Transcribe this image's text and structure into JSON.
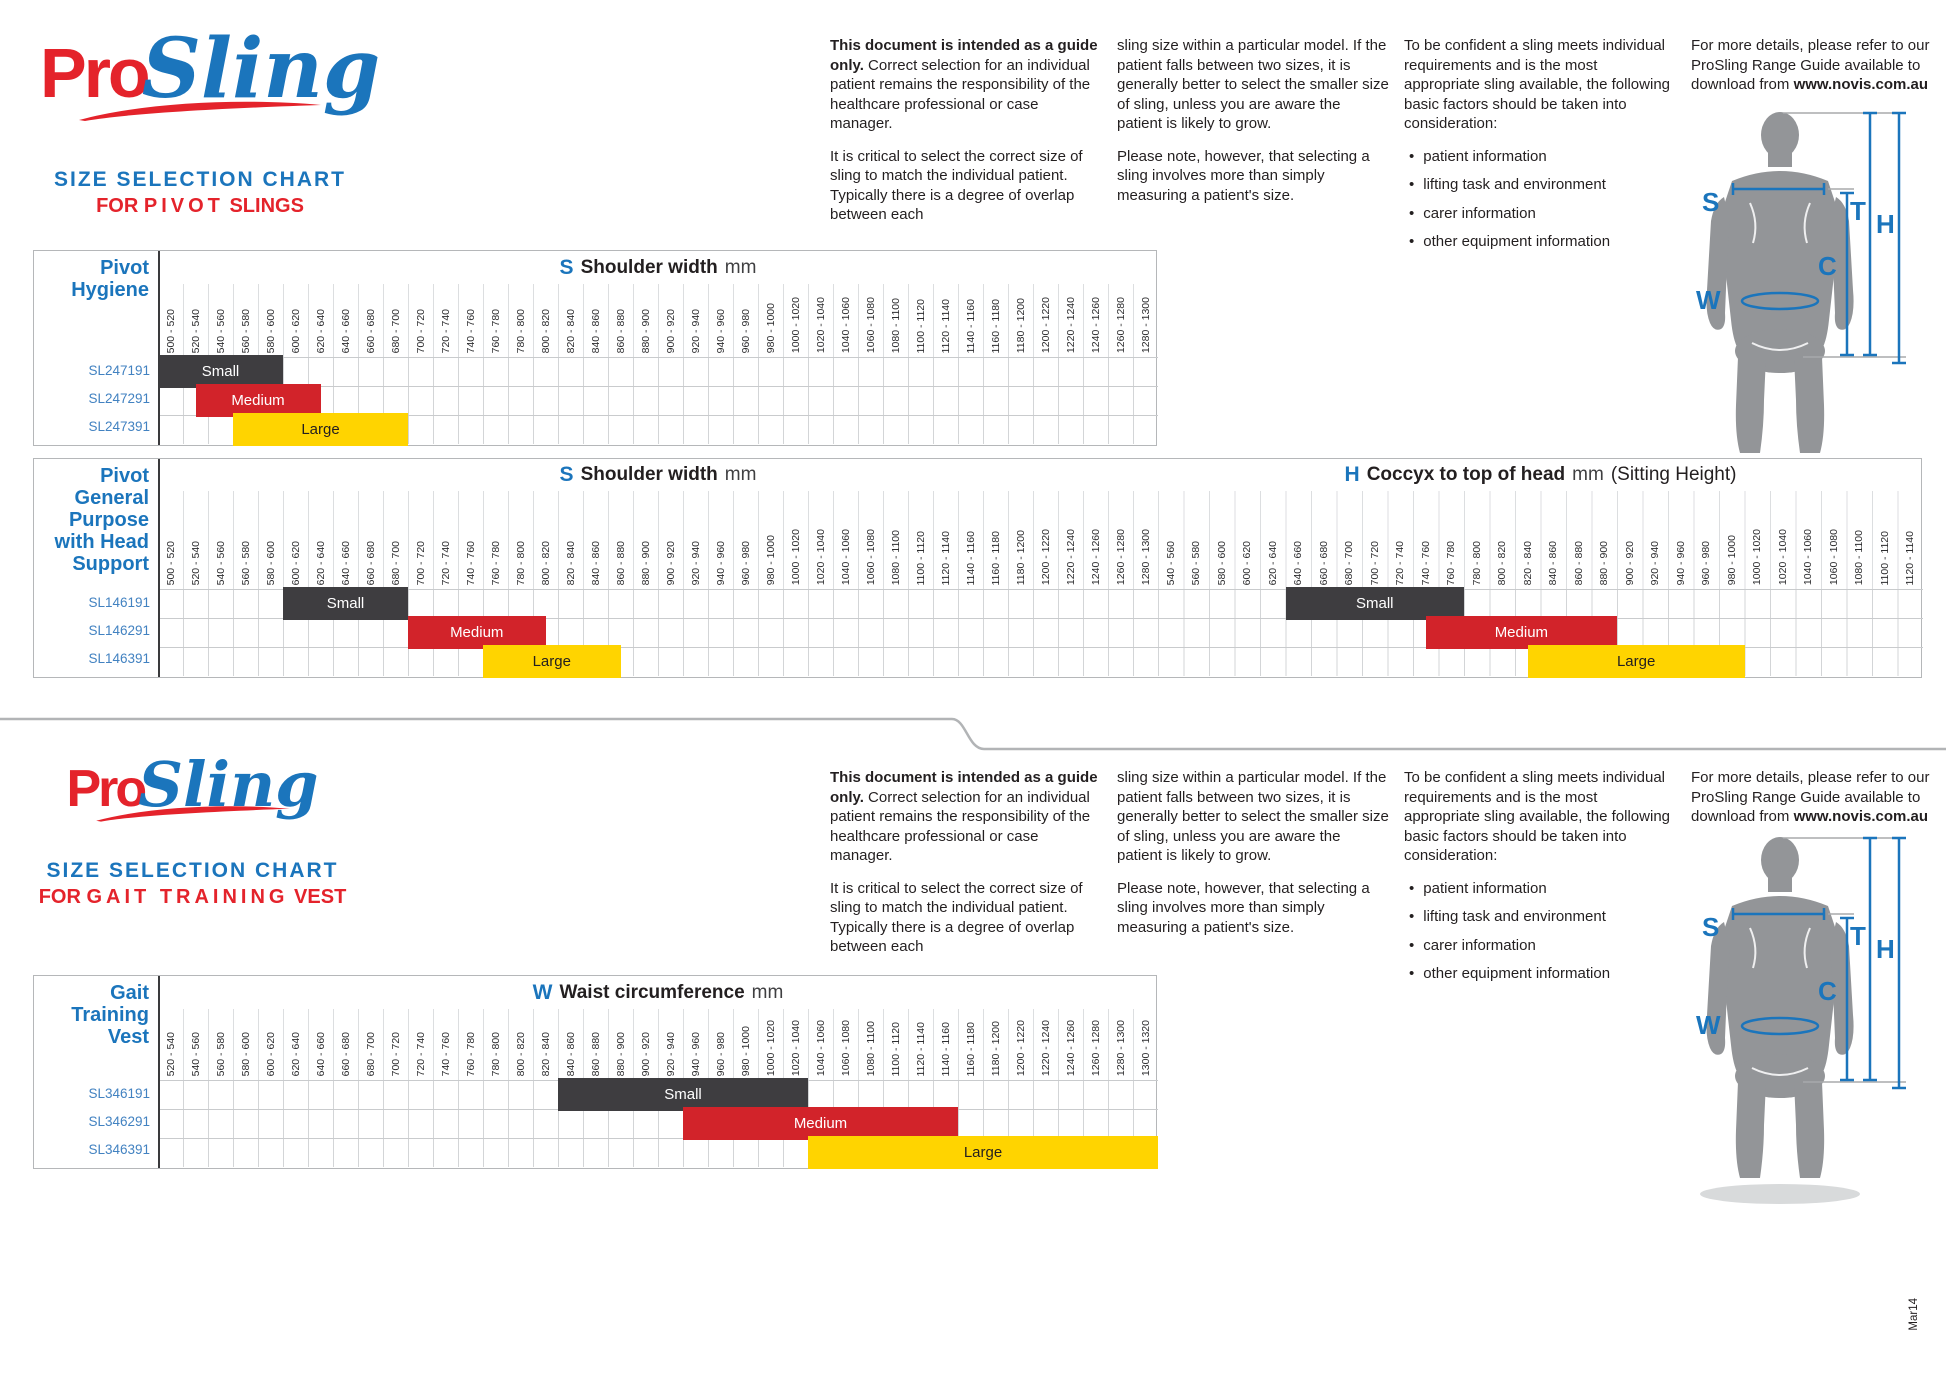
{
  "brand": {
    "pro": "Pro",
    "sling": "Sling"
  },
  "sections": [
    {
      "id": "pivot",
      "chart_label": "SIZE SELECTION CHART",
      "for_word": "FOR",
      "product_em": "PIVOT",
      "product_tail": "SLINGS"
    },
    {
      "id": "gait",
      "chart_label": "SIZE SELECTION CHART",
      "for_word": "FOR",
      "product_em": "GAIT TRAINING",
      "product_tail": "VEST"
    }
  ],
  "guide_text": {
    "col1_p1_bold": "This document is intended as a guide only.",
    "col1_p1_rest": " Correct selection for an individual patient remains the responsibility of the healthcare professional or case manager.",
    "col1_p2": "It is critical to select the correct size of sling to match the individual patient. Typically there is a degree of overlap between each",
    "col2_p1": "sling size within a particular model. If the patient falls between two sizes, it is generally better to select the smaller size of sling, unless you are aware the patient is likely to grow.",
    "col2_p2": "Please note, however, that selecting a sling involves more than simply measuring a patient's size.",
    "col3_intro": "To be confident a sling meets individual requirements and is the most appropriate sling available, the following basic factors should be taken into consideration:",
    "col3_bullets": [
      "patient information",
      "lifting task and environment",
      "carer information",
      "other equipment information"
    ],
    "bullet_glyph": "•",
    "col4_p1": "For more details, please refer to our ProSling Range Guide available to download from ",
    "col4_bold": "www.novis.com.au"
  },
  "figure": {
    "s": "S",
    "t": "T",
    "h": "H",
    "c": "C",
    "w": "W"
  },
  "size_colors": {
    "Small": {
      "bg": "#3E3D40",
      "fg": "#FFFFFF"
    },
    "Medium": {
      "bg": "#D2232A",
      "fg": "#FFFFFF"
    },
    "Large": {
      "bg": "#FFD400",
      "fg": "#231F20"
    }
  },
  "tables": [
    {
      "id": "pivot-hygiene",
      "title_lines": [
        "Pivot",
        "Hygiene"
      ],
      "axes": [
        {
          "letter": "S",
          "label": "Shoulder width",
          "unit": "mm",
          "suffix": "",
          "start": 500,
          "step": 20,
          "tick_labels": [
            "500 - 520",
            "520 - 540",
            "540 - 560",
            "560 - 580",
            "580 - 600",
            "600 - 620",
            "620 - 640",
            "640 - 660",
            "660 - 680",
            "680 - 700",
            "700 - 720",
            "720 - 740",
            "740 - 760",
            "760 - 780",
            "780 - 800",
            "800 - 820",
            "820 - 840",
            "840 - 860",
            "860 - 880",
            "880 - 900",
            "900 - 920",
            "920 - 940",
            "940 - 960",
            "960 - 980",
            "980 - 1000",
            "1000 - 1020",
            "1020 - 1040",
            "1040 - 1060",
            "1060 - 1080",
            "1080 - 1100",
            "1100 - 1120",
            "1120 - 1140",
            "1140 - 1160",
            "1160 - 1180",
            "1180 - 1200",
            "1200 - 1220",
            "1220 - 1240",
            "1240 - 1260",
            "1260 - 1280",
            "1280 - 1300"
          ]
        }
      ],
      "rows": [
        {
          "sku": "SL247191",
          "size": "Small",
          "bars": [
            {
              "axis": 0,
              "from": 500,
              "to": 600
            }
          ]
        },
        {
          "sku": "SL247291",
          "size": "Medium",
          "bars": [
            {
              "axis": 0,
              "from": 530,
              "to": 630
            }
          ]
        },
        {
          "sku": "SL247391",
          "size": "Large",
          "bars": [
            {
              "axis": 0,
              "from": 560,
              "to": 700
            }
          ]
        }
      ]
    },
    {
      "id": "pivot-general-purpose",
      "title_lines": [
        "Pivot",
        "General",
        "Purpose",
        "with Head",
        "Support"
      ],
      "axes": [
        {
          "letter": "S",
          "label": "Shoulder width",
          "unit": "mm",
          "suffix": "",
          "start": 500,
          "step": 20,
          "tick_labels": [
            "500 - 520",
            "520 - 540",
            "540 - 560",
            "560 - 580",
            "580 - 600",
            "600 - 620",
            "620 - 640",
            "640 - 660",
            "660 - 680",
            "680 - 700",
            "700 - 720",
            "720 - 740",
            "740 - 760",
            "760 - 780",
            "780 - 800",
            "800 - 820",
            "820 - 840",
            "840 - 860",
            "860 - 880",
            "880 - 900",
            "900 - 920",
            "920 - 940",
            "940 - 960",
            "960 - 980",
            "980 - 1000",
            "1000 - 1020",
            "1020 - 1040",
            "1040 - 1060",
            "1060 - 1080",
            "1080 - 1100",
            "1100 - 1120",
            "1120 - 1140",
            "1140 - 1160",
            "1160 - 1180",
            "1180 - 1200",
            "1200 - 1220",
            "1220 - 1240",
            "1240 - 1260",
            "1260 - 1280",
            "1280 - 1300"
          ]
        },
        {
          "letter": "H",
          "label": "Coccyx to top of head",
          "unit": "mm",
          "suffix": "(Sitting Height)",
          "start": 540,
          "step": 20,
          "tick_labels": [
            "540 - 560",
            "560 - 580",
            "580 - 600",
            "600 - 620",
            "620 - 640",
            "640 - 660",
            "660 - 680",
            "680 - 700",
            "700 - 720",
            "720 - 740",
            "740 - 760",
            "760 - 780",
            "780 - 800",
            "800 - 820",
            "820 - 840",
            "840 - 860",
            "860 - 880",
            "880 - 900",
            "900 - 920",
            "920 - 940",
            "940 - 960",
            "960 - 980",
            "980 - 1000",
            "1000 - 1020",
            "1020 - 1040",
            "1040 - 1060",
            "1060 - 1080",
            "1080 - 1100",
            "1100 - 1120",
            "1120 - 1140"
          ]
        }
      ],
      "rows": [
        {
          "sku": "SL146191",
          "size": "Small",
          "bars": [
            {
              "axis": 0,
              "from": 600,
              "to": 700
            },
            {
              "axis": 1,
              "from": 640,
              "to": 780
            }
          ]
        },
        {
          "sku": "SL146291",
          "size": "Medium",
          "bars": [
            {
              "axis": 0,
              "from": 700,
              "to": 810
            },
            {
              "axis": 1,
              "from": 750,
              "to": 900
            }
          ]
        },
        {
          "sku": "SL146391",
          "size": "Large",
          "bars": [
            {
              "axis": 0,
              "from": 760,
              "to": 870
            },
            {
              "axis": 1,
              "from": 830,
              "to": 1000
            }
          ]
        }
      ]
    },
    {
      "id": "gait-training-vest",
      "title_lines": [
        "Gait",
        "Training",
        "Vest"
      ],
      "axes": [
        {
          "letter": "W",
          "label": "Waist circumference",
          "unit": "mm",
          "suffix": "",
          "start": 520,
          "step": 20,
          "tick_labels": [
            "520 - 540",
            "540 - 560",
            "560 - 580",
            "580 - 600",
            "600 - 620",
            "620 - 640",
            "640 - 660",
            "660 - 680",
            "680 - 700",
            "700 - 720",
            "720 - 740",
            "740 - 760",
            "760 - 780",
            "780 - 800",
            "800 - 820",
            "820 - 840",
            "840 - 860",
            "860 - 880",
            "880 - 900",
            "900 - 920",
            "920 - 940",
            "940 - 960",
            "960 - 980",
            "980 - 1000",
            "1000 - 1020",
            "1020 - 1040",
            "1040 - 1060",
            "1060 - 1080",
            "1080 - 1100",
            "1100 - 1120",
            "1120 - 1140",
            "1140 - 1160",
            "1160 - 1180",
            "1180 - 1200",
            "1200 - 1220",
            "1220 - 1240",
            "1240 - 1260",
            "1260 - 1280",
            "1280 - 1300",
            "1300 - 1320"
          ]
        }
      ],
      "rows": [
        {
          "sku": "SL346191",
          "size": "Small",
          "bars": [
            {
              "axis": 0,
              "from": 840,
              "to": 1040
            }
          ]
        },
        {
          "sku": "SL346291",
          "size": "Medium",
          "bars": [
            {
              "axis": 0,
              "from": 940,
              "to": 1160
            }
          ]
        },
        {
          "sku": "SL346391",
          "size": "Large",
          "bars": [
            {
              "axis": 0,
              "from": 1040,
              "to": 1320
            }
          ]
        }
      ]
    }
  ],
  "footer": {
    "version": "Mar14"
  }
}
